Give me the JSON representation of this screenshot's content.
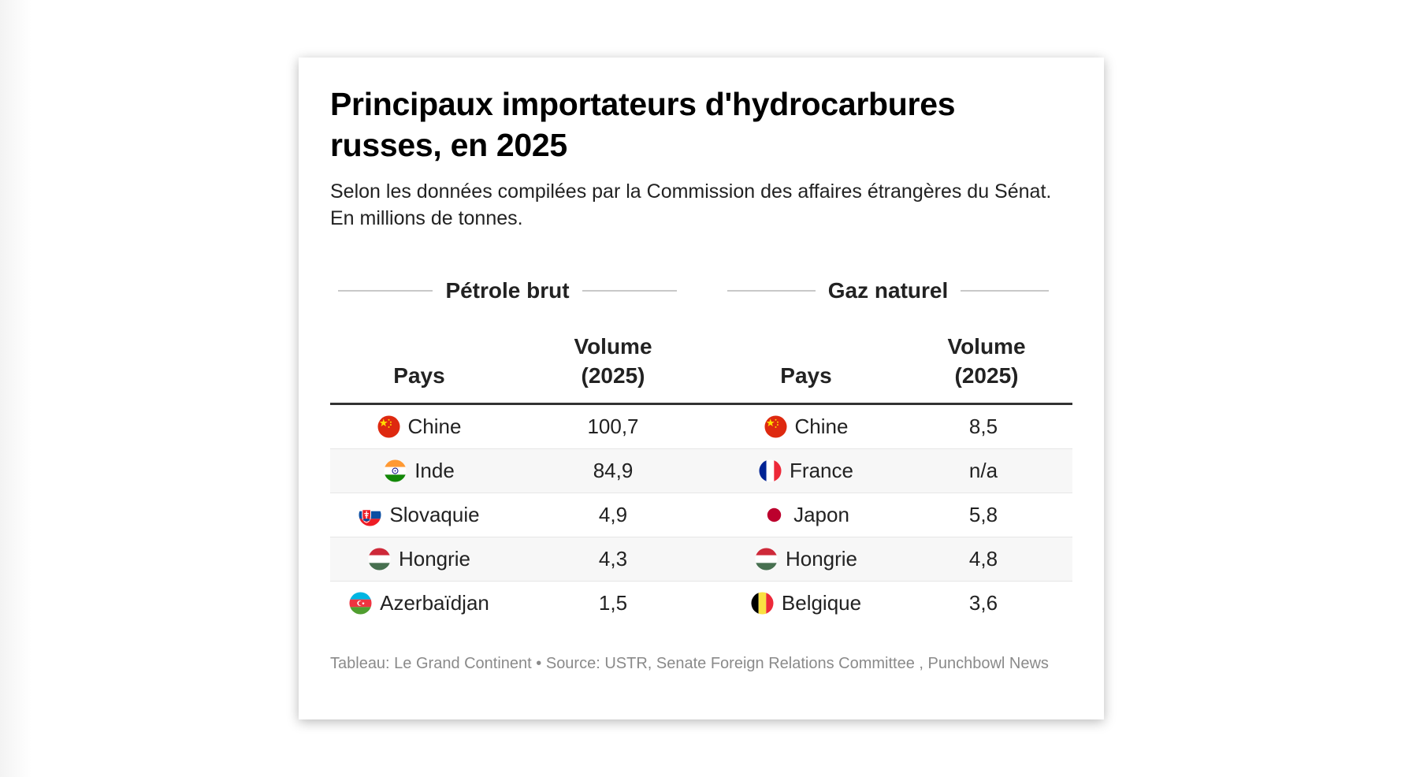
{
  "title": "Principaux importateurs d'hydrocarbures russes, en 2025",
  "subtitle": "Selon les données compilées par la Commission des affaires étrangères du Sénat. En millions de tonnes.",
  "footer": "Tableau: Le Grand Continent • Source: USTR, Senate Foreign Relations Committee , Punchbowl News",
  "chart_data": {
    "type": "table",
    "title": "Principaux importateurs d'hydrocarbures russes, en 2025",
    "unit": "En millions de tonnes.",
    "groups": [
      {
        "name": "Pétrole brut",
        "columns": [
          "Pays",
          "Volume (2025)"
        ],
        "rows": [
          {
            "country": "Chine",
            "flag": "china-flag-icon",
            "value": "100,7"
          },
          {
            "country": "Inde",
            "flag": "india-flag-icon",
            "value": "84,9"
          },
          {
            "country": "Slovaquie",
            "flag": "slovakia-flag-icon",
            "value": "4,9"
          },
          {
            "country": "Hongrie",
            "flag": "hungary-flag-icon",
            "value": "4,3"
          },
          {
            "country": "Azerbaïdjan",
            "flag": "azerbaijan-flag-icon",
            "value": "1,5"
          }
        ]
      },
      {
        "name": "Gaz naturel",
        "columns": [
          "Pays",
          "Volume (2025)"
        ],
        "rows": [
          {
            "country": "Chine",
            "flag": "china-flag-icon",
            "value": "8,5"
          },
          {
            "country": "France",
            "flag": "france-flag-icon",
            "value": "n/a"
          },
          {
            "country": "Japon",
            "flag": "japan-flag-icon",
            "value": "5,8"
          },
          {
            "country": "Hongrie",
            "flag": "hungary-flag-icon",
            "value": "4,8"
          },
          {
            "country": "Belgique",
            "flag": "belgium-flag-icon",
            "value": "3,6"
          }
        ]
      }
    ]
  },
  "colors": {
    "text": "#222222",
    "header_rule": "#333333",
    "row_alt": "#f7f7f7",
    "footer_text": "#8a8a8a"
  }
}
